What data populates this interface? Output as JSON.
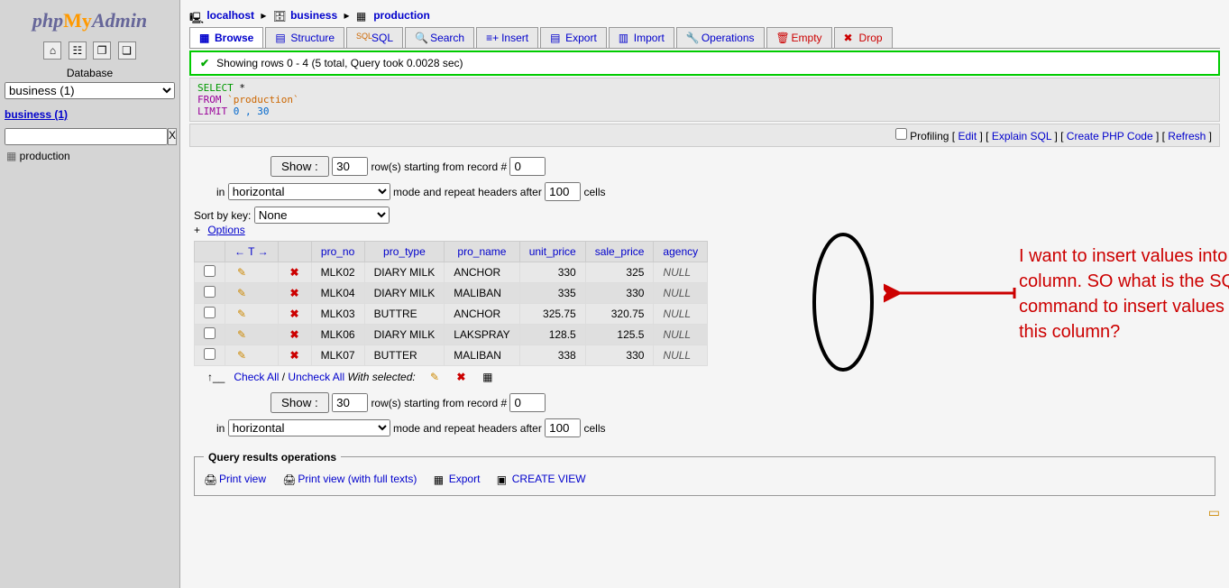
{
  "logo": {
    "php": "php",
    "my": "My",
    "admin": "Admin"
  },
  "sidebar": {
    "db_label": "Database",
    "db_selected": "business (1)",
    "db_link": "business (1)",
    "filter_x": "X",
    "table": "production"
  },
  "breadcrumb": {
    "server": "localhost",
    "db": "business",
    "table": "production"
  },
  "tabs": [
    {
      "label": "Browse",
      "icon": "browse-icon"
    },
    {
      "label": "Structure",
      "icon": "structure-icon"
    },
    {
      "label": "SQL",
      "icon": "sql-icon"
    },
    {
      "label": "Search",
      "icon": "search-icon"
    },
    {
      "label": "Insert",
      "icon": "insert-icon"
    },
    {
      "label": "Export",
      "icon": "export-icon"
    },
    {
      "label": "Import",
      "icon": "import-icon"
    },
    {
      "label": "Operations",
      "icon": "operations-icon"
    },
    {
      "label": "Empty",
      "icon": "empty-icon"
    },
    {
      "label": "Drop",
      "icon": "drop-icon"
    }
  ],
  "status": "Showing rows 0 - 4 (5 total, Query took 0.0028 sec)",
  "sql": {
    "select": "SELECT",
    "star": " *",
    "from": "FROM",
    "table": " `production`",
    "limit": "LIMIT",
    "nums": " 0 , 30"
  },
  "actions": {
    "profiling": "Profiling",
    "edit": "Edit",
    "explain": "Explain SQL",
    "php": "Create PHP Code",
    "refresh": "Refresh"
  },
  "controls": {
    "show_btn": "Show :",
    "show_val": "30",
    "rows_text": "row(s) starting from record #",
    "start_val": "0",
    "in_text": "in",
    "mode_sel": "horizontal",
    "mode_text": "mode and repeat headers after",
    "repeat_val": "100",
    "cells_text": "cells",
    "sort_label": "Sort by key:",
    "sort_sel": "None",
    "options": "Options"
  },
  "table": {
    "arrows": "← T →",
    "cols": [
      "pro_no",
      "pro_type",
      "pro_name",
      "unit_price",
      "sale_price",
      "agency"
    ],
    "rows": [
      {
        "pro_no": "MLK02",
        "pro_type": "DIARY MILK",
        "pro_name": "ANCHOR",
        "unit_price": "330",
        "sale_price": "325",
        "agency": "NULL"
      },
      {
        "pro_no": "MLK04",
        "pro_type": "DIARY MILK",
        "pro_name": "MALIBAN",
        "unit_price": "335",
        "sale_price": "330",
        "agency": "NULL"
      },
      {
        "pro_no": "MLK03",
        "pro_type": "BUTTRE",
        "pro_name": "ANCHOR",
        "unit_price": "325.75",
        "sale_price": "320.75",
        "agency": "NULL"
      },
      {
        "pro_no": "MLK06",
        "pro_type": "DIARY MILK",
        "pro_name": "LAKSPRAY",
        "unit_price": "128.5",
        "sale_price": "125.5",
        "agency": "NULL"
      },
      {
        "pro_no": "MLK07",
        "pro_type": "BUTTER",
        "pro_name": "MALIBAN",
        "unit_price": "338",
        "sale_price": "330",
        "agency": "NULL"
      }
    ]
  },
  "bulk": {
    "check_all": "Check All",
    "uncheck_all": "Uncheck All",
    "with_selected": "With selected:"
  },
  "ops": {
    "legend": "Query results operations",
    "print": "Print view",
    "print_full": "Print view (with full texts)",
    "export": "Export",
    "create_view": "CREATE VIEW"
  },
  "annotation": "I want to insert values into this column. SO what is the SQL command to insert values into this column?"
}
